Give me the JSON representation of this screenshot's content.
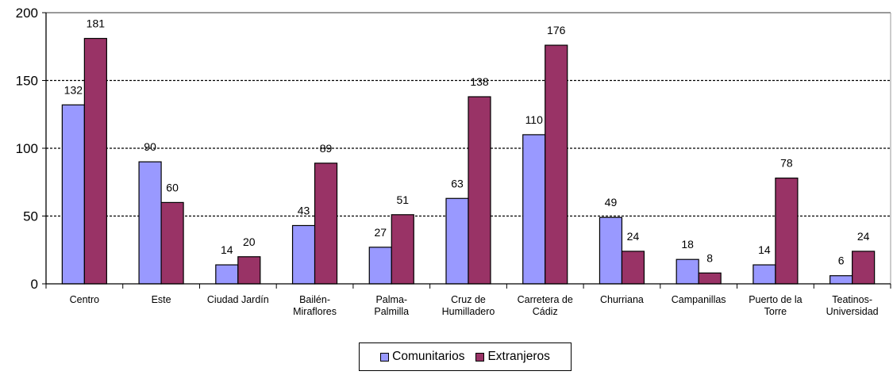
{
  "chart_data": {
    "type": "bar",
    "categories": [
      [
        "Centro"
      ],
      [
        "Este"
      ],
      [
        "Ciudad Jardín"
      ],
      [
        "Bailén-",
        "Miraflores"
      ],
      [
        "Palma-",
        "Palmilla"
      ],
      [
        "Cruz de",
        "Humilladero"
      ],
      [
        "Carretera de",
        "Cádiz"
      ],
      [
        "Churriana"
      ],
      [
        "Campanillas"
      ],
      [
        "Puerto de la",
        "Torre"
      ],
      [
        "Teatinos-",
        "Universidad"
      ]
    ],
    "series": [
      {
        "name": "Comunitarios",
        "color": "#9999ff",
        "values": [
          132,
          90,
          14,
          43,
          27,
          63,
          110,
          49,
          18,
          14,
          6
        ]
      },
      {
        "name": "Extranjeros",
        "color": "#993366",
        "values": [
          181,
          60,
          20,
          89,
          51,
          138,
          176,
          24,
          8,
          78,
          24
        ]
      }
    ],
    "ylim": [
      0,
      200
    ],
    "yticks": [
      0,
      50,
      100,
      150,
      200
    ],
    "grid": true,
    "legend": "bottom"
  }
}
